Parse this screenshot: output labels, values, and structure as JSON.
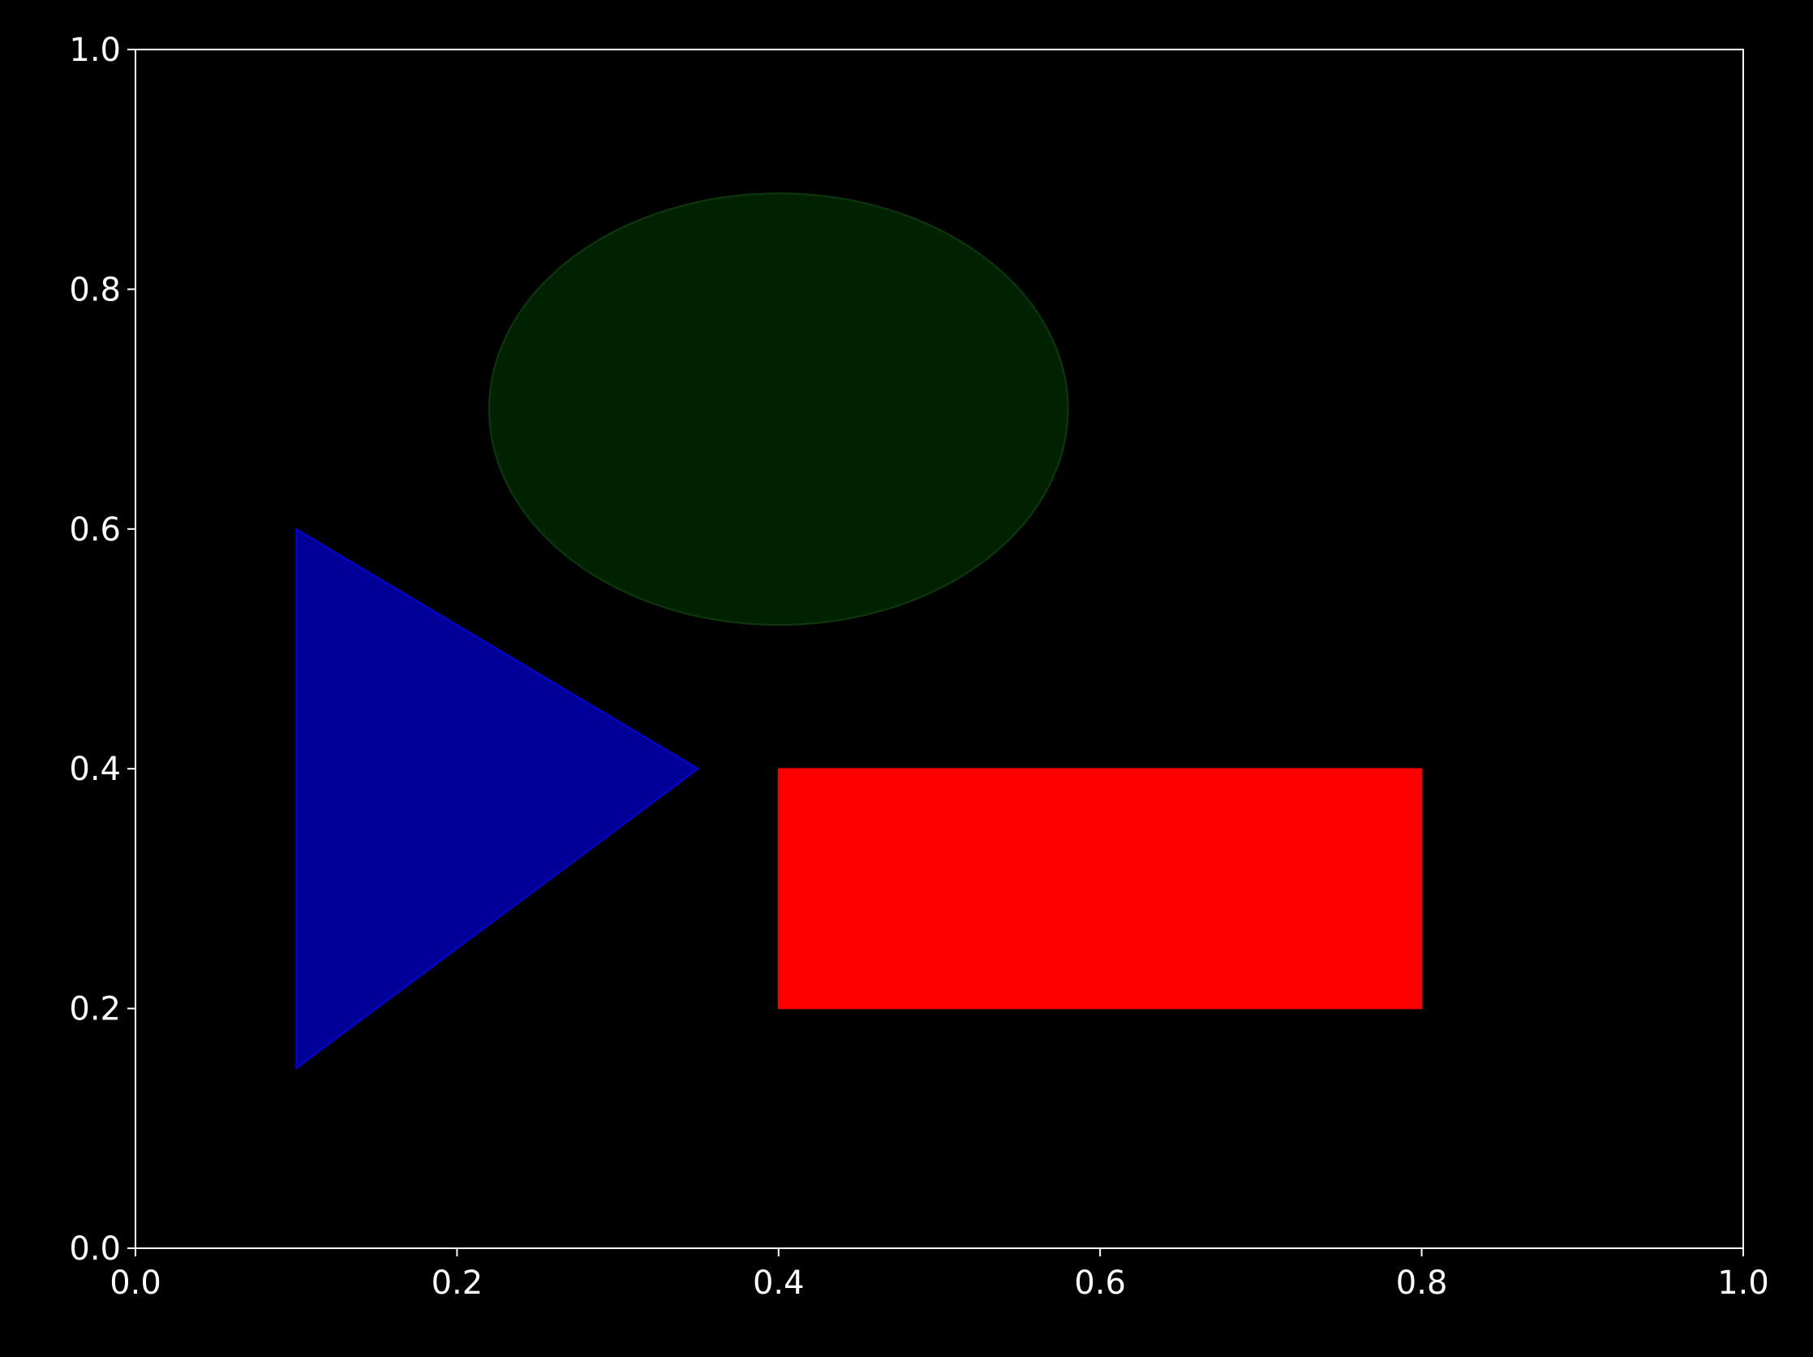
{
  "chart_data": {
    "type": "patches",
    "xlim": [
      0,
      1
    ],
    "ylim": [
      0,
      1
    ],
    "xticks": [
      {
        "value": 0,
        "label": "0.0"
      },
      0.2,
      0.4,
      0.6,
      0.8,
      {
        "value": 1,
        "label": "1.0"
      }
    ],
    "yticks": [
      {
        "value": 0,
        "label": "0.0"
      },
      0.2,
      0.4,
      0.6,
      0.8,
      {
        "value": 1,
        "label": "1.0"
      }
    ],
    "patches": [
      {
        "kind": "rectangle",
        "xy": [
          0.4,
          0.2
        ],
        "width": 0.4,
        "height": 0.2,
        "color": "#ff0000",
        "edgecolor": "#ff0000"
      },
      {
        "kind": "polygon",
        "points": [
          [
            0.1,
            0.6
          ],
          [
            0.35,
            0.4
          ],
          [
            0.1,
            0.15
          ]
        ],
        "color": "#000099",
        "edgecolor": "#0000ff"
      },
      {
        "kind": "ellipse",
        "center": [
          0.4,
          0.7
        ],
        "width": 0.36,
        "height": 0.36,
        "color": "#002200",
        "edgecolor": "#0b3a0b"
      }
    ]
  }
}
